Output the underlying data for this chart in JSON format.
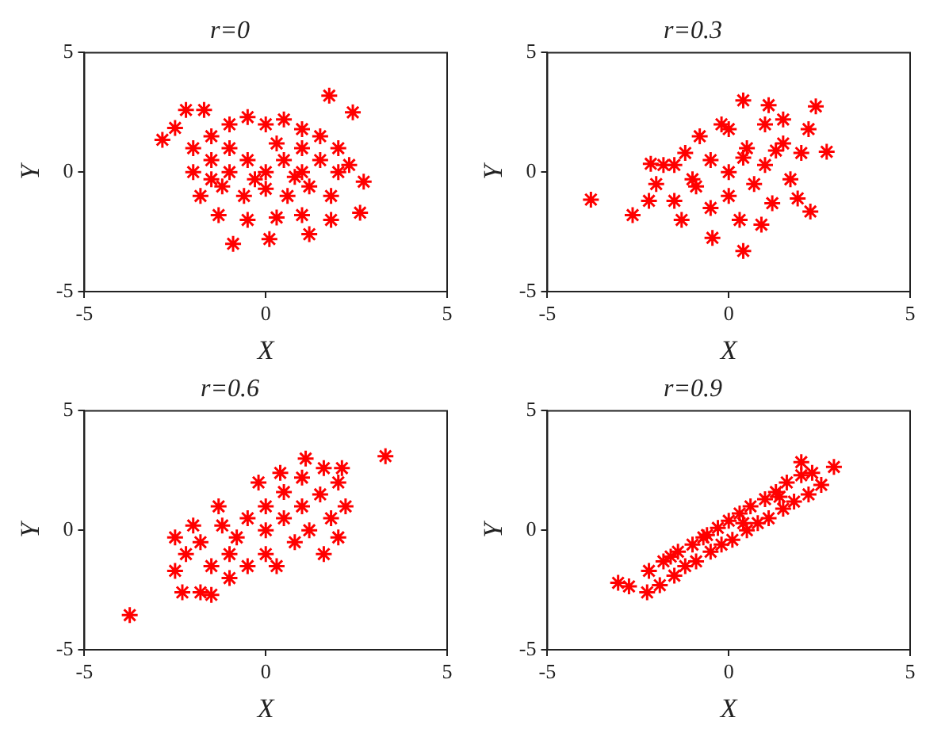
{
  "chart_data": [
    {
      "type": "scatter",
      "title": "r=0",
      "xlabel": "X",
      "ylabel": "Y",
      "color": "#ff0000",
      "marker": "cross",
      "xlim": [
        -5,
        5
      ],
      "ylim": [
        -5,
        5
      ],
      "xticks": [
        -5,
        0,
        5
      ],
      "yticks": [
        -5,
        0,
        5
      ],
      "x": [
        1.75,
        2.4,
        -2.85,
        -2.5,
        -2.2,
        -1.7,
        2.7,
        2.6,
        -0.9,
        0.1,
        1.2,
        -2,
        -1.5,
        -1,
        -0.5,
        0,
        0.5,
        1,
        1.5,
        2,
        -2,
        -1.5,
        -1,
        -0.5,
        0,
        0.5,
        1,
        1.5,
        2,
        -1.8,
        -1.2,
        -0.6,
        0,
        0.6,
        1.2,
        1.8,
        -1.3,
        -0.5,
        0.3,
        1,
        1.8,
        -1,
        0.3,
        1,
        -0.3,
        0.8,
        -1.5,
        2.3
      ],
      "values": [
        3.2,
        2.5,
        1.35,
        1.85,
        2.6,
        2.6,
        -0.4,
        -1.7,
        -3,
        -2.8,
        -2.6,
        1,
        1.5,
        2,
        2.3,
        2,
        2.2,
        1.8,
        1.5,
        1,
        0,
        0.5,
        0,
        0.5,
        0,
        0.5,
        0,
        0.5,
        0,
        -1,
        -0.6,
        -1,
        -0.7,
        -1,
        -0.6,
        -1,
        -1.8,
        -2,
        -1.9,
        -1.8,
        -2,
        1,
        1.2,
        1,
        -0.3,
        -0.2,
        -0.3,
        0.3
      ]
    },
    {
      "type": "scatter",
      "title": "r=0.3",
      "xlabel": "X",
      "ylabel": "Y",
      "color": "#ff0000",
      "marker": "cross",
      "xlim": [
        -5,
        5
      ],
      "ylim": [
        -5,
        5
      ],
      "xticks": [
        -5,
        0,
        5
      ],
      "yticks": [
        -5,
        0,
        5
      ],
      "x": [
        -3.8,
        -2.65,
        0.4,
        1.1,
        2.4,
        2.7,
        2.25,
        0.4,
        -0.45,
        -2.15,
        -2,
        -1.8,
        -1.5,
        -1.2,
        -1,
        -0.8,
        -0.5,
        -0.5,
        0,
        0,
        0,
        0.3,
        0.5,
        0.7,
        1,
        1,
        1.2,
        1.5,
        1.7,
        2,
        2.2,
        -1.3,
        -0.2,
        1.5,
        -2.2,
        0.9,
        1.9,
        -1.5,
        0.4,
        -0.9,
        1.3
      ],
      "values": [
        -1.15,
        -1.8,
        3,
        2.8,
        2.75,
        0.85,
        -1.65,
        -3.3,
        -2.75,
        0.35,
        -0.5,
        0.3,
        -1.2,
        0.8,
        -0.3,
        1.5,
        0.5,
        -1.5,
        0,
        1.8,
        -1,
        -2,
        1,
        -0.5,
        2,
        0.3,
        -1.3,
        1.2,
        -0.3,
        0.8,
        1.8,
        -2,
        2,
        2.2,
        -1.2,
        -2.2,
        -1.1,
        0.3,
        0.6,
        -0.6,
        0.9
      ]
    },
    {
      "type": "scatter",
      "title": "r=0.6",
      "xlabel": "X",
      "ylabel": "Y",
      "color": "#ff0000",
      "marker": "cross",
      "xlim": [
        -5,
        5
      ],
      "ylim": [
        -5,
        5
      ],
      "xticks": [
        -5,
        0,
        5
      ],
      "yticks": [
        -5,
        0,
        5
      ],
      "x": [
        3.3,
        -3.75,
        1.6,
        -2.5,
        -2.3,
        -2.5,
        -2.2,
        -1.8,
        -1.5,
        -1.8,
        -1.5,
        -1.2,
        -1,
        -1,
        -0.8,
        -0.5,
        -0.5,
        0,
        0,
        0,
        0.3,
        0.5,
        0.5,
        0.8,
        1,
        1,
        1.2,
        1.5,
        1.6,
        1.8,
        2,
        2.1,
        2.2,
        1.1,
        -2,
        -1.3,
        -0.2,
        0.4,
        2
      ],
      "values": [
        3.1,
        -3.55,
        -1,
        -1.7,
        -2.6,
        -0.3,
        -1,
        -2.6,
        -2.7,
        -0.5,
        -1.5,
        0.2,
        -1,
        -2,
        -0.3,
        -1.5,
        0.5,
        0,
        -1,
        1,
        -1.5,
        0.5,
        1.6,
        -0.5,
        1,
        2.2,
        0,
        1.5,
        2.6,
        0.5,
        2,
        2.6,
        1,
        3,
        0.2,
        1,
        2,
        2.4,
        -0.3
      ]
    },
    {
      "type": "scatter",
      "title": "r=0.9",
      "xlabel": "X",
      "ylabel": "Y",
      "color": "#ff0000",
      "marker": "cross",
      "xlim": [
        -5,
        5
      ],
      "ylim": [
        -5,
        5
      ],
      "xticks": [
        -5,
        0,
        5
      ],
      "yticks": [
        -5,
        0,
        5
      ],
      "x": [
        2.9,
        -3.05,
        -2.75,
        -2.25,
        2,
        2.55,
        -2.2,
        -1.9,
        -1.8,
        -1.5,
        -1.4,
        -1.2,
        -1,
        -0.9,
        -0.7,
        -0.5,
        -0.3,
        -0.2,
        0,
        0.1,
        0.3,
        0.5,
        0.6,
        0.8,
        1,
        1.1,
        1.3,
        1.5,
        1.6,
        1.8,
        2,
        2.2,
        2.3,
        -1.6,
        -0.6,
        0.4,
        1.4
      ],
      "values": [
        2.65,
        -2.2,
        -2.35,
        -2.6,
        2.85,
        1.9,
        -1.7,
        -2.3,
        -1.3,
        -1.9,
        -0.9,
        -1.5,
        -0.6,
        -1.3,
        -0.3,
        -0.9,
        0.1,
        -0.6,
        0.4,
        -0.4,
        0.7,
        0,
        1,
        0.3,
        1.3,
        0.5,
        1.6,
        0.9,
        2,
        1.2,
        2.3,
        1.5,
        2.4,
        -1.1,
        -0.2,
        0.3,
        1.4
      ]
    }
  ]
}
